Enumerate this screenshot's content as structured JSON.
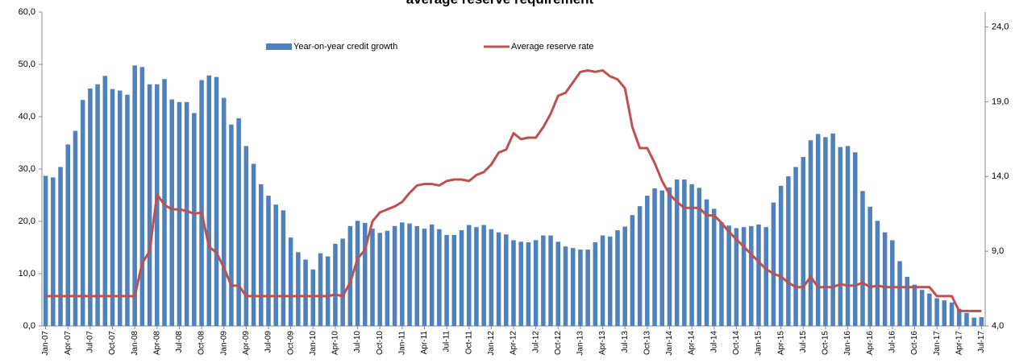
{
  "chart_data": {
    "type": "bar_line",
    "title": "average reserve requirement",
    "categories": [
      "Jan-07",
      null,
      null,
      "Apr-07",
      null,
      null,
      "Jul-07",
      null,
      null,
      "Oct-07",
      null,
      null,
      "Jan-08",
      null,
      null,
      "Apr-08",
      null,
      null,
      "Jul-08",
      null,
      null,
      "Oct-08",
      null,
      null,
      "Jan-09",
      null,
      null,
      "Apr-09",
      null,
      null,
      "Jul-09",
      null,
      null,
      "Oct-09",
      null,
      null,
      "Jan-10",
      null,
      null,
      "Apr-10",
      null,
      null,
      "Jul-10",
      null,
      null,
      "Oct-10",
      null,
      null,
      "Jan-11",
      null,
      null,
      "Apr-11",
      null,
      null,
      "Jul-11",
      null,
      null,
      "Oct-11",
      null,
      null,
      "Jan-12",
      null,
      null,
      "Apr-12",
      null,
      null,
      "Jul-12",
      null,
      null,
      "Oct-12",
      null,
      null,
      "Jan-13",
      null,
      null,
      "Apr-13",
      null,
      null,
      "Jul-13",
      null,
      null,
      "Oct-13",
      null,
      null,
      "Jan-14",
      null,
      null,
      "Apr-14",
      null,
      null,
      "Jul-14",
      null,
      null,
      "Oct-14",
      null,
      null,
      "Jan-15",
      null,
      null,
      "Apr-15",
      null,
      null,
      "Jul-15",
      null,
      null,
      "Oct-15",
      null,
      null,
      "Jan-16",
      null,
      null,
      "Apr-16",
      null,
      null,
      "Jul-16",
      null,
      null,
      "Oct-16",
      null,
      null,
      "Jan-17",
      null,
      null,
      "Apr-17",
      null,
      null,
      "Jul-17"
    ],
    "series": [
      {
        "name": "Year-on-year credit growth",
        "type": "bar",
        "color": "#4f81bd",
        "axis": "y",
        "values": [
          28.7,
          28.4,
          30.4,
          34.7,
          37.3,
          43.2,
          45.4,
          46.2,
          47.8,
          45.3,
          45.0,
          44.2,
          49.8,
          49.5,
          46.2,
          46.2,
          47.2,
          43.3,
          42.8,
          42.8,
          40.7,
          47.0,
          47.9,
          47.6,
          43.6,
          38.5,
          39.7,
          34.4,
          31.0,
          27.1,
          24.9,
          23.2,
          22.1,
          16.9,
          14.1,
          12.7,
          10.8,
          13.9,
          13.3,
          15.7,
          16.7,
          19.1,
          20.1,
          19.7,
          18.6,
          17.8,
          18.2,
          19.1,
          19.8,
          19.6,
          19.1,
          18.6,
          19.4,
          18.5,
          17.4,
          17.4,
          18.3,
          19.3,
          18.9,
          19.3,
          18.5,
          17.9,
          17.5,
          16.4,
          16.1,
          16.0,
          16.4,
          17.3,
          17.3,
          16.1,
          15.2,
          14.9,
          14.6,
          14.6,
          16.0,
          17.3,
          17.1,
          18.3,
          19.0,
          21.2,
          22.9,
          24.9,
          26.3,
          25.9,
          26.5,
          28.0,
          28.0,
          27.1,
          26.4,
          24.2,
          22.4,
          19.8,
          19.2,
          18.7,
          18.9,
          19.1,
          19.4,
          18.9,
          23.6,
          26.8,
          28.6,
          30.4,
          32.3,
          35.5,
          36.7,
          36.1,
          36.8,
          34.2,
          34.4,
          33.2,
          25.8,
          22.8,
          20.1,
          17.9,
          16.4,
          12.4,
          9.4,
          7.9,
          6.9,
          6.2,
          5.3,
          4.9,
          4.5,
          3.3,
          2.5,
          1.6,
          1.7
        ]
      },
      {
        "name": "Average reserve rate",
        "type": "line",
        "color": "#c0504d",
        "axis": "y2",
        "values": [
          6.0,
          6.0,
          6.0,
          6.0,
          6.0,
          6.0,
          6.0,
          6.0,
          6.0,
          6.0,
          6.0,
          6.0,
          6.0,
          8.2,
          9.0,
          12.8,
          12.1,
          11.8,
          11.8,
          11.7,
          11.5,
          11.6,
          9.3,
          8.9,
          7.9,
          6.7,
          6.7,
          6.0,
          6.0,
          6.0,
          6.0,
          6.0,
          6.0,
          6.0,
          6.0,
          6.0,
          6.0,
          6.0,
          6.0,
          6.1,
          6.0,
          6.9,
          8.5,
          9.1,
          11.0,
          11.6,
          11.8,
          12.0,
          12.3,
          12.9,
          13.4,
          13.5,
          13.5,
          13.4,
          13.7,
          13.8,
          13.8,
          13.7,
          14.1,
          14.3,
          14.8,
          15.6,
          15.8,
          16.9,
          16.5,
          16.6,
          16.6,
          17.3,
          18.2,
          19.4,
          19.6,
          20.3,
          21.0,
          21.1,
          21.0,
          21.1,
          20.7,
          20.5,
          19.9,
          17.3,
          15.9,
          15.9,
          14.9,
          13.7,
          12.8,
          12.3,
          11.9,
          11.9,
          11.9,
          11.4,
          11.4,
          10.9,
          10.3,
          9.8,
          9.3,
          8.8,
          8.3,
          7.8,
          7.5,
          7.3,
          6.9,
          6.6,
          6.6,
          7.3,
          6.6,
          6.6,
          6.6,
          6.8,
          6.7,
          6.7,
          6.9,
          6.6,
          6.7,
          6.6,
          6.6,
          6.6,
          6.6,
          6.6,
          6.6,
          6.6,
          6.0,
          6.0,
          6.0,
          5.0,
          5.0,
          5.0,
          5.0
        ]
      }
    ],
    "ylim": [
      0,
      60
    ],
    "yticks": [
      {
        "value": 0,
        "label": "0,0"
      },
      {
        "value": 10,
        "label": "10,0"
      },
      {
        "value": 20,
        "label": "20,0"
      },
      {
        "value": 30,
        "label": "30,0"
      },
      {
        "value": 40,
        "label": "40,0"
      },
      {
        "value": 50,
        "label": "50,0"
      },
      {
        "value": 60,
        "label": "60,0"
      }
    ],
    "y2lim": [
      4,
      25
    ],
    "y2ticks": [
      {
        "value": 4,
        "label": "4,0"
      },
      {
        "value": 9,
        "label": "9,0"
      },
      {
        "value": 14,
        "label": "14,0"
      },
      {
        "value": 19,
        "label": "19,0"
      },
      {
        "value": 24,
        "label": "24,0"
      }
    ],
    "grid": false
  }
}
